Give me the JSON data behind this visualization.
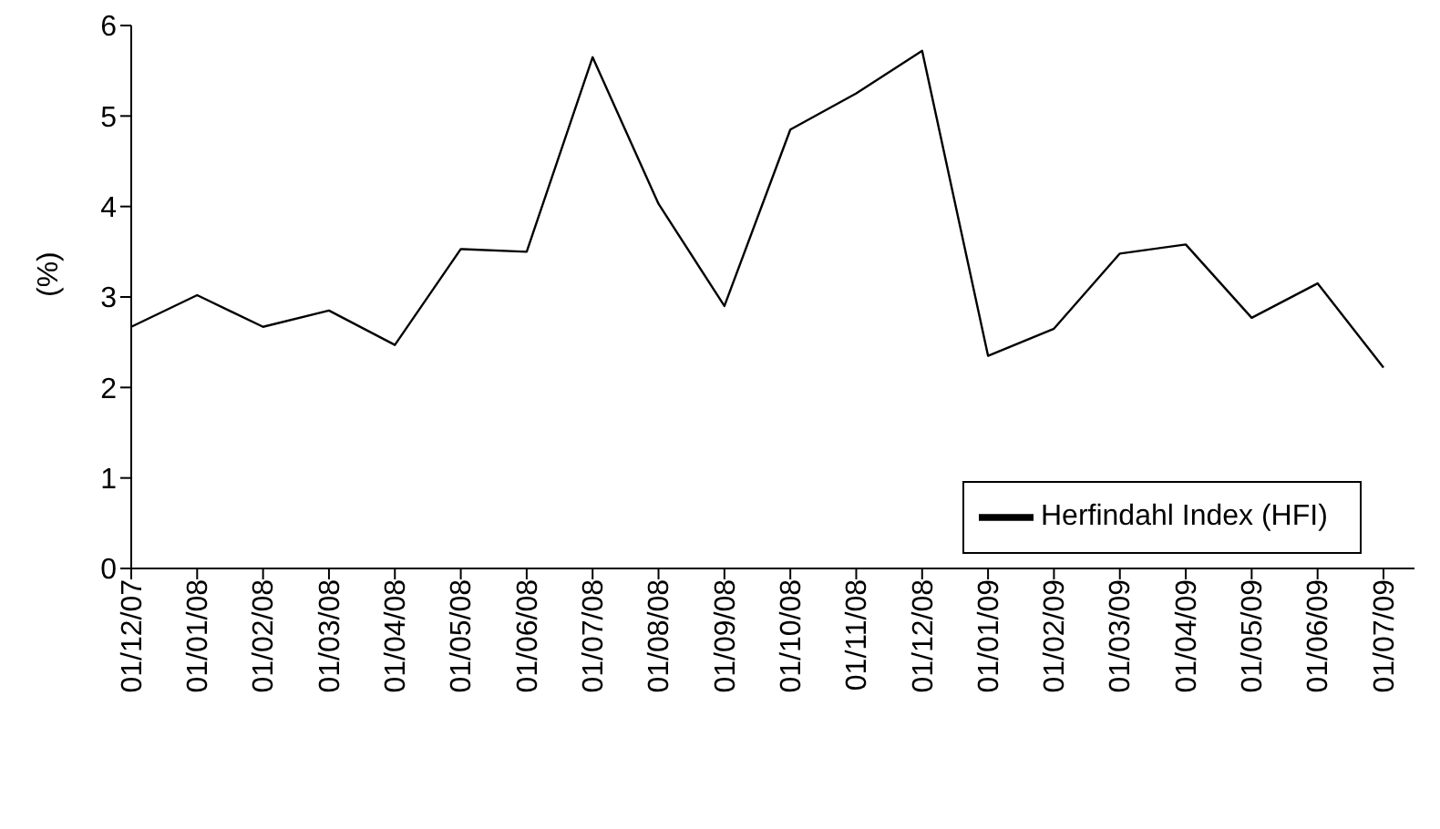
{
  "chart_data": {
    "type": "line",
    "ylabel": "(%)",
    "categories": [
      "01/12/07",
      "01/01/08",
      "01/02/08",
      "01/03/08",
      "01/04/08",
      "01/05/08",
      "01/06/08",
      "01/07/08",
      "01/08/08",
      "01/09/08",
      "01/10/08",
      "01/11/08",
      "01/12/08",
      "01/01/09",
      "01/02/09",
      "01/03/09",
      "01/04/09",
      "01/05/09",
      "01/06/09",
      "01/07/09"
    ],
    "series": [
      {
        "name": "Herfindahl Index (HFI)",
        "color": "#000000",
        "values": [
          2.67,
          3.02,
          2.67,
          2.85,
          2.47,
          3.53,
          3.5,
          5.65,
          4.03,
          2.9,
          4.85,
          5.25,
          5.72,
          2.35,
          2.65,
          3.48,
          3.58,
          2.77,
          3.15,
          2.22
        ]
      }
    ],
    "ylim": [
      0,
      6
    ],
    "yticks": [
      0,
      1,
      2,
      3,
      4,
      5,
      6
    ],
    "grid": false,
    "legend": "bottom right",
    "marker": "none",
    "line_style": "solid"
  }
}
